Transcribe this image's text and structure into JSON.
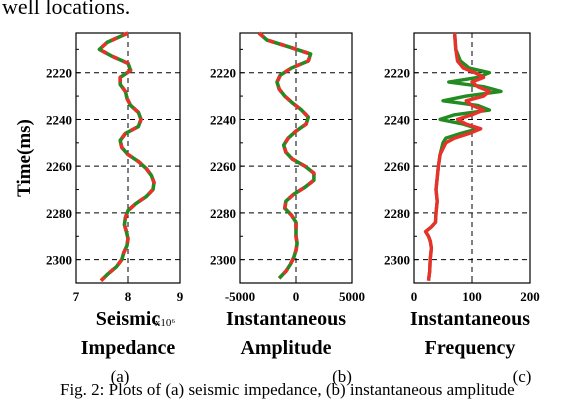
{
  "header_text": "well locations.",
  "caption": "Fig. 2: Plots of (a) seismic impedance, (b) instantaneous amplitude",
  "y_axis_label": "Time(ms)",
  "colors": {
    "series_a": "#228b22",
    "series_b": "#e8312a",
    "grid": "#000000"
  },
  "chart_data": [
    {
      "type": "line",
      "panel_label": "(a)",
      "xlabel": [
        "Seismic",
        "Impedance"
      ],
      "x_exponent": "x10⁶",
      "xlim": [
        7,
        9
      ],
      "xticks": [
        7,
        8,
        9
      ],
      "xtick_labels": [
        "7",
        "8",
        "9"
      ],
      "ylim": [
        2310,
        2203
      ],
      "yticks": [
        2220,
        2240,
        2260,
        2280,
        2300
      ],
      "ytick_labels": [
        "2220",
        "2240",
        "2260",
        "2280",
        "2300"
      ],
      "series": [
        {
          "time": [
            2203,
            2207,
            2210,
            2213,
            2216,
            2219,
            2222,
            2225,
            2228,
            2231,
            2234,
            2237,
            2240,
            2243,
            2246,
            2249,
            2252,
            2255,
            2258,
            2261,
            2264,
            2267,
            2270,
            2273,
            2276,
            2279,
            2282,
            2285,
            2288,
            2291,
            2294,
            2297,
            2300,
            2303,
            2306,
            2309
          ],
          "values": [
            8.0,
            7.6,
            7.45,
            7.7,
            8.0,
            8.05,
            7.85,
            7.85,
            7.95,
            7.98,
            8.05,
            8.2,
            8.25,
            8.2,
            7.95,
            7.85,
            7.88,
            8.0,
            8.2,
            8.35,
            8.45,
            8.5,
            8.48,
            8.35,
            8.15,
            8.0,
            7.95,
            7.93,
            7.97,
            8.0,
            7.98,
            7.92,
            7.88,
            7.78,
            7.62,
            7.48
          ]
        }
      ]
    },
    {
      "type": "line",
      "panel_label": "(b)",
      "xlabel": [
        "Instantaneous",
        "Amplitude"
      ],
      "xlim": [
        -5000,
        5000
      ],
      "xticks": [
        -5000,
        0,
        5000
      ],
      "xtick_labels": [
        "-5000",
        "0",
        "5000"
      ],
      "ylim": [
        2310,
        2203
      ],
      "yticks": [
        2220,
        2240,
        2260,
        2280,
        2300
      ],
      "ytick_labels": [
        "2220",
        "2240",
        "2260",
        "2280",
        "2300"
      ],
      "series": [
        {
          "time": [
            2203,
            2206,
            2209,
            2212,
            2215,
            2218,
            2221,
            2224,
            2227,
            2230,
            2233,
            2236,
            2239,
            2242,
            2245,
            2248,
            2251,
            2254,
            2257,
            2260,
            2263,
            2266,
            2269,
            2272,
            2275,
            2278,
            2281,
            2284,
            2287,
            2290,
            2293,
            2296,
            2299,
            2302,
            2305,
            2308
          ],
          "values": [
            -3300,
            -2600,
            -600,
            1300,
            1100,
            -400,
            -1400,
            -1700,
            -1500,
            -1000,
            -300,
            500,
            1100,
            900,
            0,
            -700,
            -1100,
            -900,
            -300,
            800,
            1600,
            1600,
            800,
            -200,
            -900,
            -1000,
            -400,
            0,
            0,
            0,
            100,
            0,
            -200,
            -500,
            -900,
            -1500
          ]
        }
      ]
    },
    {
      "type": "line",
      "panel_label": "(c)",
      "xlabel": [
        "Instantaneous",
        "Frequency"
      ],
      "xlim": [
        0,
        200
      ],
      "xticks": [
        0,
        100,
        200
      ],
      "xtick_labels": [
        "0",
        "100",
        "200"
      ],
      "ylim": [
        2310,
        2203
      ],
      "yticks": [
        2220,
        2240,
        2260,
        2280,
        2300
      ],
      "ytick_labels": [
        "2220",
        "2240",
        "2260",
        "2280",
        "2300"
      ],
      "series": [
        {
          "name_color": "series_a",
          "time": [
            2203,
            2210,
            2215,
            2218,
            2220,
            2222,
            2224,
            2226,
            2228,
            2230,
            2232,
            2234,
            2236,
            2238,
            2240,
            2242,
            2244,
            2246,
            2248,
            2250,
            2255,
            2260,
            2265,
            2270,
            2275,
            2280,
            2284,
            2286,
            2288,
            2290,
            2292,
            2295,
            2300,
            2305,
            2309
          ],
          "values": [
            70,
            72,
            80,
            95,
            130,
            110,
            60,
            120,
            150,
            90,
            50,
            110,
            130,
            70,
            45,
            85,
            110,
            80,
            55,
            50,
            45,
            42,
            40,
            38,
            40,
            38,
            37,
            30,
            20,
            25,
            28,
            30,
            28,
            27,
            25
          ]
        },
        {
          "name_color": "series_b",
          "time": [
            2203,
            2210,
            2215,
            2218,
            2220,
            2222,
            2224,
            2226,
            2228,
            2230,
            2232,
            2234,
            2236,
            2238,
            2240,
            2242,
            2244,
            2246,
            2248,
            2250,
            2255,
            2260,
            2265,
            2270,
            2275,
            2280,
            2284,
            2286,
            2288,
            2290,
            2292,
            2295,
            2300,
            2305,
            2309
          ],
          "values": [
            70,
            72,
            75,
            85,
            105,
            120,
            100,
            110,
            130,
            120,
            90,
            100,
            120,
            100,
            75,
            90,
            115,
            95,
            70,
            55,
            45,
            42,
            40,
            38,
            40,
            38,
            37,
            30,
            20,
            25,
            28,
            30,
            28,
            27,
            25
          ]
        }
      ]
    }
  ]
}
